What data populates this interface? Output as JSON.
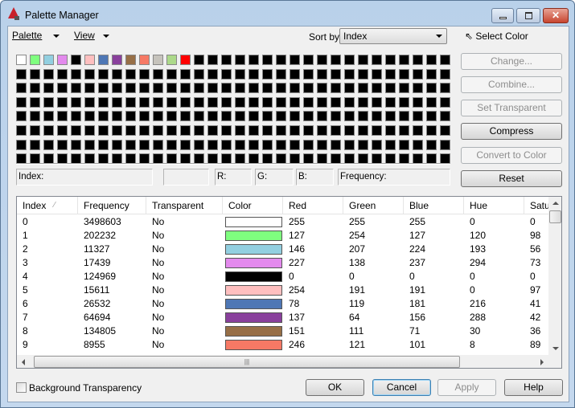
{
  "window": {
    "title": "Palette Manager"
  },
  "menu": {
    "palette": "Palette",
    "view": "View"
  },
  "sort": {
    "label": "Sort by:",
    "value": "Index"
  },
  "select_color": "Select Color",
  "palette": {
    "colors": [
      "#ffffff",
      "#7ffe7f",
      "#92cfe0",
      "#e38aed",
      "#000000",
      "#febfbf",
      "#4e77b5",
      "#89409c",
      "#976f47",
      "#f67965",
      "#c6c3bc",
      "#acd98a",
      "#ff0000"
    ],
    "total": 256,
    "default": "#000000"
  },
  "buttons": {
    "change": "Change...",
    "combine": "Combine...",
    "set_transparent": "Set Transparent",
    "compress": "Compress",
    "convert": "Convert to Color",
    "reset": "Reset"
  },
  "info": {
    "index": "Index:",
    "r": "R:",
    "g": "G:",
    "b": "B:",
    "frequency": "Frequency:"
  },
  "table": {
    "columns": [
      "Index",
      "Frequency",
      "Transparent",
      "Color",
      "Red",
      "Green",
      "Blue",
      "Hue",
      "Satu"
    ],
    "rows": [
      [
        "0",
        "3498603",
        "No",
        "#ffffff",
        "255",
        "255",
        "255",
        "0",
        "0"
      ],
      [
        "1",
        "202232",
        "No",
        "#7ffe7f",
        "127",
        "254",
        "127",
        "120",
        "98"
      ],
      [
        "2",
        "11327",
        "No",
        "#92cfe0",
        "146",
        "207",
        "224",
        "193",
        "56"
      ],
      [
        "3",
        "17439",
        "No",
        "#e38aed",
        "227",
        "138",
        "237",
        "294",
        "73"
      ],
      [
        "4",
        "124969",
        "No",
        "#000000",
        "0",
        "0",
        "0",
        "0",
        "0"
      ],
      [
        "5",
        "15611",
        "No",
        "#febfbf",
        "254",
        "191",
        "191",
        "0",
        "97"
      ],
      [
        "6",
        "26532",
        "No",
        "#4e77b5",
        "78",
        "119",
        "181",
        "216",
        "41"
      ],
      [
        "7",
        "64694",
        "No",
        "#89409c",
        "137",
        "64",
        "156",
        "288",
        "42"
      ],
      [
        "8",
        "134805",
        "No",
        "#976f47",
        "151",
        "111",
        "71",
        "30",
        "36"
      ],
      [
        "9",
        "8955",
        "No",
        "#f67965",
        "246",
        "121",
        "101",
        "8",
        "89"
      ]
    ]
  },
  "background_transparency": {
    "label": "Background Transparency",
    "checked": false
  },
  "footer": {
    "ok": "OK",
    "cancel": "Cancel",
    "apply": "Apply",
    "help": "Help"
  }
}
